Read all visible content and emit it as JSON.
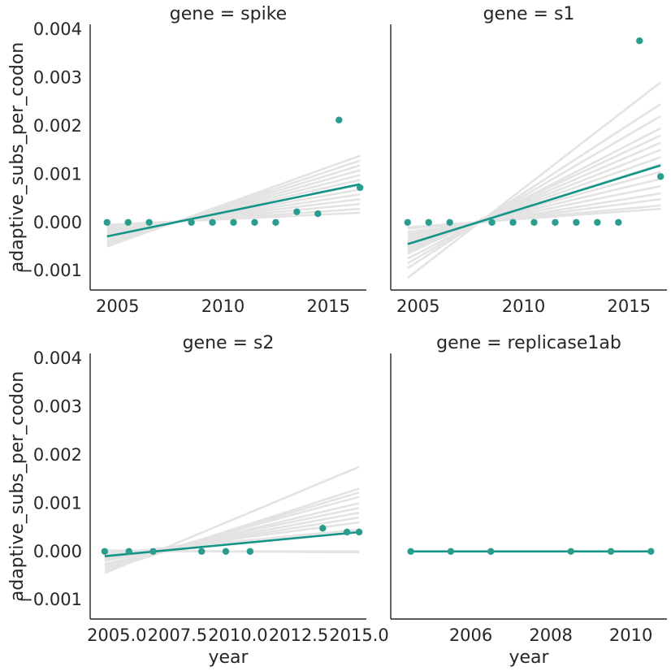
{
  "chart_data": [
    {
      "type": "scatter",
      "title": "gene = spike",
      "xlabel": "",
      "ylabel": "adaptive_subs_per_codon",
      "xlim": [
        2003.7,
        2016.8
      ],
      "ylim": [
        -0.0014,
        0.0041
      ],
      "xticks": [
        2005,
        2010,
        2015
      ],
      "xtick_labels": [
        "2005",
        "2010",
        "2015"
      ],
      "yticks": [
        -0.001,
        0.0,
        0.001,
        0.002,
        0.003,
        0.004
      ],
      "ytick_labels": [
        "−0.001",
        "0.000",
        "0.001",
        "0.002",
        "0.003",
        "0.004"
      ],
      "points": {
        "x": [
          2004.5,
          2005.5,
          2006.5,
          2008.5,
          2009.5,
          2010.5,
          2011.5,
          2012.5,
          2013.5,
          2014.5,
          2015.5,
          2016.5
        ],
        "y": [
          0.0,
          0.0,
          0.0,
          0.0,
          0.0,
          0.0,
          0.0,
          0.0,
          0.00022,
          0.00018,
          0.00212,
          0.00072
        ]
      },
      "fit": {
        "x": [
          2004.5,
          2016.5
        ],
        "y": [
          -0.00029,
          0.00079
        ]
      },
      "bootstrap_lines": [
        {
          "x": [
            2004.5,
            2016.5
          ],
          "y": [
            -0.0005,
            0.00138
          ]
        },
        {
          "x": [
            2004.5,
            2016.5
          ],
          "y": [
            -0.00047,
            0.00128
          ]
        },
        {
          "x": [
            2004.5,
            2016.5
          ],
          "y": [
            -0.00043,
            0.00118
          ]
        },
        {
          "x": [
            2004.5,
            2016.5
          ],
          "y": [
            -0.0004,
            0.00108
          ]
        },
        {
          "x": [
            2004.5,
            2016.5
          ],
          "y": [
            -0.00036,
            0.00098
          ]
        },
        {
          "x": [
            2004.5,
            2016.5
          ],
          "y": [
            -0.00032,
            0.00088
          ]
        },
        {
          "x": [
            2004.5,
            2016.5
          ],
          "y": [
            -0.00028,
            0.00078
          ]
        },
        {
          "x": [
            2004.5,
            2016.5
          ],
          "y": [
            -0.00024,
            0.00068
          ]
        },
        {
          "x": [
            2004.5,
            2016.5
          ],
          "y": [
            -0.0002,
            0.00058
          ]
        },
        {
          "x": [
            2004.5,
            2016.5
          ],
          "y": [
            -0.00016,
            0.00048
          ]
        },
        {
          "x": [
            2004.5,
            2016.5
          ],
          "y": [
            -0.00012,
            0.00038
          ]
        },
        {
          "x": [
            2004.5,
            2016.5
          ],
          "y": [
            -8e-05,
            0.00028
          ]
        },
        {
          "x": [
            2004.5,
            2016.5
          ],
          "y": [
            -5e-05,
            0.0002
          ]
        }
      ]
    },
    {
      "type": "scatter",
      "title": "gene = s1",
      "xlabel": "",
      "ylabel": "",
      "xlim": [
        2003.7,
        2016.8
      ],
      "ylim": [
        -0.0014,
        0.0041
      ],
      "xticks": [
        2005,
        2010,
        2015
      ],
      "xtick_labels": [
        "2005",
        "2010",
        "2015"
      ],
      "points": {
        "x": [
          2004.5,
          2005.5,
          2006.5,
          2008.5,
          2009.5,
          2010.5,
          2011.5,
          2012.5,
          2013.5,
          2014.5,
          2015.5,
          2016.5
        ],
        "y": [
          0.0,
          0.0,
          0.0,
          0.0,
          0.0,
          0.0,
          0.0,
          0.0,
          0.0,
          0.0,
          0.00376,
          0.00095
        ]
      },
      "fit": {
        "x": [
          2004.5,
          2016.5
        ],
        "y": [
          -0.00045,
          0.00118
        ]
      },
      "bootstrap_lines": [
        {
          "x": [
            2004.5,
            2016.5
          ],
          "y": [
            -0.00115,
            0.0029
          ]
        },
        {
          "x": [
            2004.5,
            2016.5
          ],
          "y": [
            -0.00095,
            0.00245
          ]
        },
        {
          "x": [
            2004.5,
            2016.5
          ],
          "y": [
            -0.00085,
            0.0022
          ]
        },
        {
          "x": [
            2004.5,
            2016.5
          ],
          "y": [
            -0.00075,
            0.00195
          ]
        },
        {
          "x": [
            2004.5,
            2016.5
          ],
          "y": [
            -0.00065,
            0.0018
          ]
        },
        {
          "x": [
            2004.5,
            2016.5
          ],
          "y": [
            -0.0006,
            0.00165
          ]
        },
        {
          "x": [
            2004.5,
            2016.5
          ],
          "y": [
            -0.00055,
            0.0015
          ]
        },
        {
          "x": [
            2004.5,
            2016.5
          ],
          "y": [
            -0.0005,
            0.00135
          ]
        },
        {
          "x": [
            2004.5,
            2016.5
          ],
          "y": [
            -0.00045,
            0.0012
          ]
        },
        {
          "x": [
            2004.5,
            2016.5
          ],
          "y": [
            -0.0004,
            0.00105
          ]
        },
        {
          "x": [
            2004.5,
            2016.5
          ],
          "y": [
            -0.00035,
            0.0009
          ]
        },
        {
          "x": [
            2004.5,
            2016.5
          ],
          "y": [
            -0.0003,
            0.00075
          ]
        },
        {
          "x": [
            2004.5,
            2016.5
          ],
          "y": [
            -0.00025,
            0.0006
          ]
        },
        {
          "x": [
            2004.5,
            2016.5
          ],
          "y": [
            -0.0002,
            0.00048
          ]
        },
        {
          "x": [
            2004.5,
            2016.5
          ],
          "y": [
            -0.00013,
            0.00035
          ]
        },
        {
          "x": [
            2004.5,
            2016.5
          ],
          "y": [
            -0.0001,
            0.00028
          ]
        }
      ]
    },
    {
      "type": "scatter",
      "title": "gene = s2",
      "xlabel": "year",
      "ylabel": "adaptive_subs_per_codon",
      "xlim": [
        2003.9,
        2015.3
      ],
      "ylim": [
        -0.0014,
        0.0041
      ],
      "xticks": [
        2005.0,
        2007.5,
        2010.0,
        2012.5,
        2015.0
      ],
      "xtick_labels": [
        "2005.0",
        "2007.5",
        "2010.0",
        "2012.5",
        "2015.0"
      ],
      "yticks": [
        -0.001,
        0.0,
        0.001,
        0.002,
        0.003,
        0.004
      ],
      "ytick_labels": [
        "−0.001",
        "0.000",
        "0.001",
        "0.002",
        "0.003",
        "0.004"
      ],
      "points": {
        "x": [
          2004.5,
          2005.5,
          2006.5,
          2008.5,
          2009.5,
          2010.5,
          2013.5,
          2014.5,
          2015.0
        ],
        "y": [
          0.0,
          0.0,
          0.0,
          0.0,
          0.0,
          0.0,
          0.00048,
          0.0004,
          0.0004
        ]
      },
      "fit": {
        "x": [
          2004.5,
          2015.0
        ],
        "y": [
          -0.0001,
          0.0004
        ]
      },
      "bootstrap_lines": [
        {
          "x": [
            2004.5,
            2015.0
          ],
          "y": [
            -0.00045,
            0.00175
          ]
        },
        {
          "x": [
            2004.5,
            2015.0
          ],
          "y": [
            -0.0004,
            0.0013
          ]
        },
        {
          "x": [
            2004.5,
            2015.0
          ],
          "y": [
            -0.00035,
            0.00122
          ]
        },
        {
          "x": [
            2004.5,
            2015.0
          ],
          "y": [
            -0.0003,
            0.00113
          ]
        },
        {
          "x": [
            2004.5,
            2015.0
          ],
          "y": [
            -0.00026,
            0.001
          ]
        },
        {
          "x": [
            2004.5,
            2015.0
          ],
          "y": [
            -0.0002,
            0.0009
          ]
        },
        {
          "x": [
            2004.5,
            2015.0
          ],
          "y": [
            -0.00018,
            0.0008
          ]
        },
        {
          "x": [
            2004.5,
            2015.0
          ],
          "y": [
            -0.00015,
            0.0007
          ]
        },
        {
          "x": [
            2004.5,
            2015.0
          ],
          "y": [
            -0.0001,
            0.0006
          ]
        },
        {
          "x": [
            2004.5,
            2015.0
          ],
          "y": [
            -5e-05,
            0.00045
          ]
        },
        {
          "x": [
            2004.5,
            2015.0
          ],
          "y": [
            0.0,
            0.0
          ]
        },
        {
          "x": [
            2004.5,
            2015.0
          ],
          "y": [
            2e-05,
            -2e-05
          ]
        }
      ]
    },
    {
      "type": "scatter",
      "title": "gene = replicase1ab",
      "xlabel": "year",
      "ylabel": "",
      "xlim": [
        2004.0,
        2010.9
      ],
      "ylim": [
        -0.0014,
        0.0041
      ],
      "xticks": [
        2006,
        2008,
        2010
      ],
      "xtick_labels": [
        "2006",
        "2008",
        "2010"
      ],
      "points": {
        "x": [
          2004.5,
          2005.5,
          2006.5,
          2008.5,
          2009.5,
          2010.5
        ],
        "y": [
          0.0,
          0.0,
          0.0,
          0.0,
          0.0,
          0.0
        ]
      },
      "fit": {
        "x": [
          2004.5,
          2010.5
        ],
        "y": [
          0.0,
          0.0
        ]
      },
      "bootstrap_lines": []
    }
  ],
  "colors": {
    "accent": "#139486",
    "points": "#2a9d8f",
    "bootstrap": "#e3e3e3",
    "axis": "#262626"
  }
}
